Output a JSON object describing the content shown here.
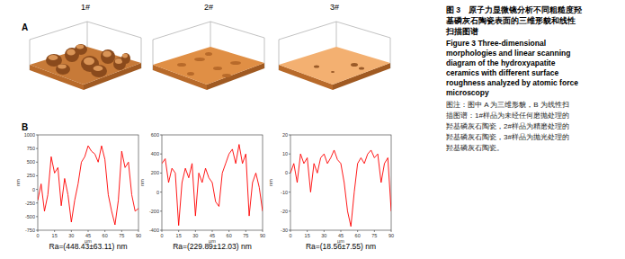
{
  "chart_data": [
    {
      "type": "line",
      "title": "1#",
      "annotation": "Ra=(448.43±63.11) nm",
      "x_label": "μm",
      "y_label": "nm",
      "xlim": [
        0,
        90
      ],
      "xticks": [
        0,
        15,
        30,
        45,
        60,
        75,
        90
      ],
      "ylim": [
        -750,
        1000
      ],
      "yticks": [
        -750,
        -500,
        -250,
        0,
        250,
        500,
        750,
        1000
      ],
      "grid": false,
      "x": [
        0,
        3,
        6,
        9,
        12,
        15,
        18,
        21,
        24,
        27,
        30,
        33,
        36,
        39,
        42,
        45,
        48,
        51,
        54,
        57,
        60,
        63,
        66,
        69,
        72,
        75,
        78,
        81,
        84,
        87,
        90
      ],
      "series": [
        {
          "color": "#ff0000",
          "values": [
            -200,
            100,
            -400,
            -100,
            600,
            300,
            400,
            -300,
            200,
            -100,
            -600,
            -200,
            100,
            500,
            600,
            800,
            700,
            650,
            500,
            800,
            550,
            -100,
            -400,
            -650,
            -200,
            700,
            400,
            500,
            -100,
            -400,
            -350
          ]
        }
      ]
    },
    {
      "type": "line",
      "title": "2#",
      "annotation": "Ra=(229.89±12.03) nm",
      "x_label": "μm",
      "y_label": "nm",
      "xlim": [
        0,
        90
      ],
      "xticks": [
        0,
        15,
        30,
        45,
        60,
        75,
        90
      ],
      "ylim": [
        -400,
        600
      ],
      "yticks": [
        -400,
        -200,
        0,
        200,
        400,
        600
      ],
      "grid": false,
      "x": [
        0,
        3,
        6,
        9,
        12,
        15,
        18,
        21,
        24,
        27,
        30,
        33,
        36,
        39,
        42,
        45,
        48,
        51,
        54,
        57,
        60,
        63,
        66,
        69,
        72,
        75,
        78,
        81,
        84,
        87,
        90
      ],
      "series": [
        {
          "color": "#ff0000",
          "values": [
            300,
            350,
            100,
            250,
            200,
            -350,
            100,
            250,
            150,
            300,
            -250,
            200,
            100,
            250,
            150,
            100,
            -100,
            -150,
            200,
            300,
            400,
            450,
            300,
            500,
            300,
            400,
            -250,
            100,
            200,
            50,
            -200
          ]
        }
      ]
    },
    {
      "type": "line",
      "title": "3#",
      "annotation": "Ra=(18.56±7.55) nm",
      "x_label": "μm",
      "y_label": "nm",
      "xlim": [
        0,
        90
      ],
      "xticks": [
        0,
        15,
        30,
        45,
        60,
        75,
        90
      ],
      "ylim": [
        -30,
        20
      ],
      "yticks": [
        -30,
        -20,
        -10,
        0,
        10,
        20
      ],
      "grid": false,
      "x": [
        0,
        3,
        6,
        9,
        12,
        15,
        18,
        21,
        24,
        27,
        30,
        33,
        36,
        39,
        42,
        45,
        48,
        51,
        54,
        57,
        60,
        63,
        66,
        69,
        72,
        75,
        78,
        81,
        84,
        87,
        90
      ],
      "series": [
        {
          "color": "#ff0000",
          "values": [
            0,
            5,
            -5,
            10,
            5,
            8,
            -10,
            5,
            0,
            8,
            10,
            5,
            8,
            12,
            7,
            5,
            -5,
            -20,
            -28,
            -10,
            5,
            8,
            5,
            10,
            12,
            8,
            10,
            -5,
            5,
            8,
            -20
          ]
        }
      ]
    }
  ],
  "panel_labels": [
    "A",
    "B"
  ],
  "caption": {
    "zh": [
      "图 3　原子力显微镜分析不同粗糙度羟",
      "基磷灰石陶瓷表面的三维形貌和线性",
      "扫描图谱"
    ],
    "en": [
      "Figure 3   Three-dimensional",
      "morphologies and linear scanning",
      "diagram of the hydroxyapatite",
      "ceramics with different surface",
      "roughness analyzed by atomic force",
      "microscopy"
    ],
    "note": [
      "图注：图中 A 为三维形貌，B 为线性扫",
      "描图谱：1#样品为未经任何磨抛处理的",
      "羟基磷灰石陶瓷，2#样品为精磨处理的",
      "羟基磷灰石陶瓷，3#样品为抛光处理的",
      "羟基磷灰石陶瓷。"
    ]
  }
}
